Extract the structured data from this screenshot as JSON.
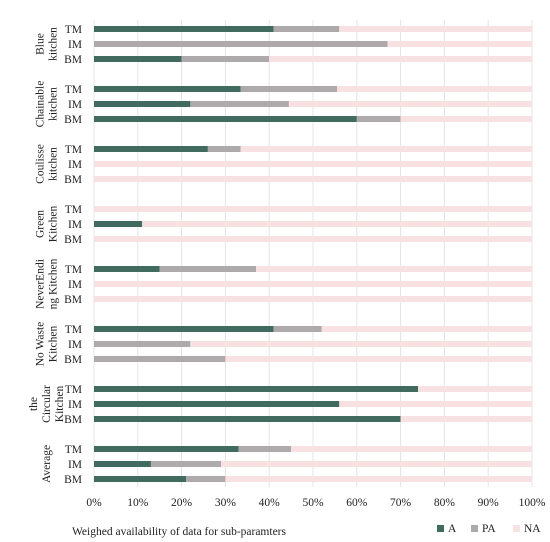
{
  "chart_data": {
    "type": "bar",
    "orientation": "horizontal",
    "stacked": true,
    "xlabel": "Weighed availability of data for sub-paramters",
    "xlim": [
      0,
      100
    ],
    "x_ticks": [
      "0%",
      "10%",
      "20%",
      "30%",
      "40%",
      "50%",
      "60%",
      "70%",
      "80%",
      "90%",
      "100%"
    ],
    "grid": "vertical",
    "legend_position": "bottom-right",
    "colors": {
      "A": "#426b5f",
      "PA": "#aeaaac",
      "NA": "#f7e1e3"
    },
    "series_names": [
      "A",
      "PA",
      "NA"
    ],
    "groups": [
      {
        "label_lines": [
          "Blue",
          "kitchen"
        ],
        "rows": [
          {
            "label": "TM",
            "A": 41,
            "PA": 15,
            "NA": 44
          },
          {
            "label": "IM",
            "A": 0,
            "PA": 67,
            "NA": 33
          },
          {
            "label": "BM",
            "A": 20,
            "PA": 20,
            "NA": 60
          }
        ]
      },
      {
        "label_lines": [
          "Chainable",
          "kitchen"
        ],
        "rows": [
          {
            "label": "TM",
            "A": 33.5,
            "PA": 22,
            "NA": 44.5
          },
          {
            "label": "IM",
            "A": 22,
            "PA": 22.5,
            "NA": 55.5
          },
          {
            "label": "BM",
            "A": 60,
            "PA": 10,
            "NA": 30
          }
        ]
      },
      {
        "label_lines": [
          "Coulisse",
          "kitchen"
        ],
        "rows": [
          {
            "label": "TM",
            "A": 26,
            "PA": 7.5,
            "NA": 66.5
          },
          {
            "label": "IM",
            "A": 0,
            "PA": 0,
            "NA": 100
          },
          {
            "label": "BM",
            "A": 0,
            "PA": 0,
            "NA": 100
          }
        ]
      },
      {
        "label_lines": [
          "Green",
          "Kitchen"
        ],
        "rows": [
          {
            "label": "TM",
            "A": 0,
            "PA": 0,
            "NA": 100
          },
          {
            "label": "IM",
            "A": 11,
            "PA": 0,
            "NA": 89
          },
          {
            "label": "BM",
            "A": 0,
            "PA": 0,
            "NA": 100
          }
        ]
      },
      {
        "label_lines": [
          "NeverEndi",
          "ng Kitchen"
        ],
        "rows": [
          {
            "label": "TM",
            "A": 15,
            "PA": 22,
            "NA": 63
          },
          {
            "label": "IM",
            "A": 0,
            "PA": 0,
            "NA": 100
          },
          {
            "label": "BM",
            "A": 0,
            "PA": 0,
            "NA": 100
          }
        ]
      },
      {
        "label_lines": [
          "No Waste",
          "Kitchen"
        ],
        "rows": [
          {
            "label": "TM",
            "A": 41,
            "PA": 11,
            "NA": 48
          },
          {
            "label": "IM",
            "A": 0,
            "PA": 22,
            "NA": 78
          },
          {
            "label": "BM",
            "A": 0,
            "PA": 30,
            "NA": 70
          }
        ]
      },
      {
        "label_lines": [
          "the",
          "Circular",
          "Kitchen"
        ],
        "rows": [
          {
            "label": "TM",
            "A": 74,
            "PA": 0,
            "NA": 26
          },
          {
            "label": "IM",
            "A": 56,
            "PA": 0,
            "NA": 44
          },
          {
            "label": "BM",
            "A": 70,
            "PA": 0,
            "NA": 30
          }
        ]
      },
      {
        "label_lines": [
          "Average"
        ],
        "rows": [
          {
            "label": "TM",
            "A": 33,
            "PA": 12,
            "NA": 55
          },
          {
            "label": "IM",
            "A": 13,
            "PA": 16,
            "NA": 71
          },
          {
            "label": "BM",
            "A": 21,
            "PA": 9,
            "NA": 70
          }
        ]
      }
    ]
  }
}
